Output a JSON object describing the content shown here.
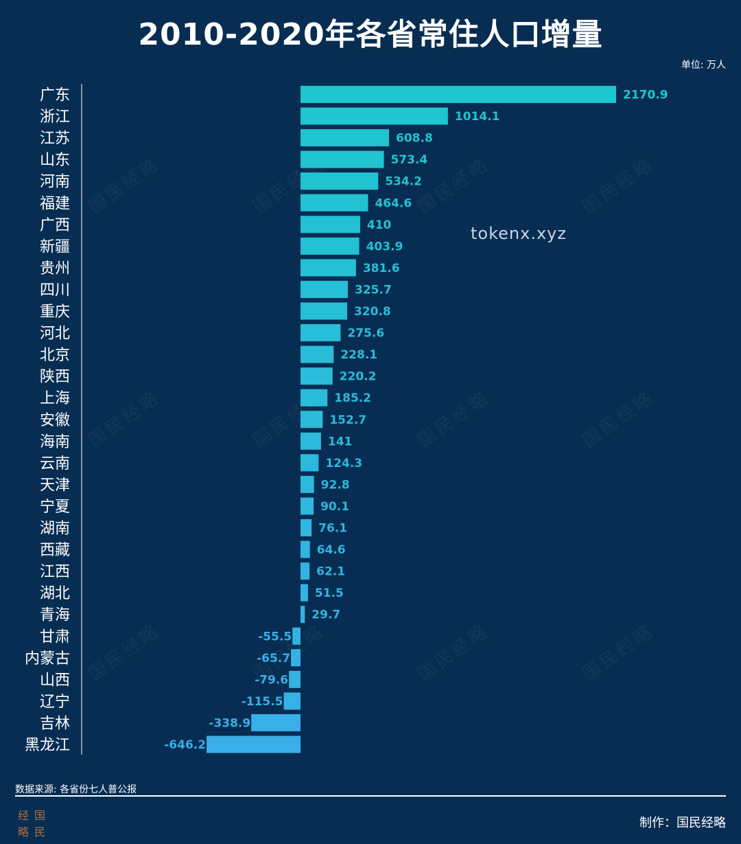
{
  "title": "2010-2020年各省常住人口增量",
  "unit_label": "单位: 万人",
  "source": "数据来源: 各省份七人普公报",
  "watermark_url": "tokenx.xyz",
  "watermark_text": "国民经略",
  "logo": {
    "chars": [
      "经",
      "国",
      "略",
      "民"
    ]
  },
  "maker": "制作：国民经略",
  "colors": {
    "background": "#072d52",
    "bar_high": "#1ec6ce",
    "bar_low": "#39aee8",
    "text": "#ffffff",
    "axis": "#ffffff"
  },
  "chart_data": {
    "type": "bar",
    "orientation": "horizontal",
    "categories": [
      "广东",
      "浙江",
      "江苏",
      "山东",
      "河南",
      "福建",
      "广西",
      "新疆",
      "贵州",
      "四川",
      "重庆",
      "河北",
      "北京",
      "陕西",
      "上海",
      "安徽",
      "海南",
      "云南",
      "天津",
      "宁夏",
      "湖南",
      "西藏",
      "江西",
      "湖北",
      "青海",
      "甘肃",
      "内蒙古",
      "山西",
      "辽宁",
      "吉林",
      "黑龙江"
    ],
    "values": [
      2170.9,
      1014.1,
      608.8,
      573.4,
      534.2,
      464.6,
      410,
      403.9,
      381.6,
      325.7,
      320.8,
      275.6,
      228.1,
      220.2,
      185.2,
      152.7,
      141,
      124.3,
      92.8,
      90.1,
      76.1,
      64.6,
      62.1,
      51.5,
      29.7,
      -55.5,
      -65.7,
      -79.6,
      -115.5,
      -338.9,
      -646.2
    ],
    "value_labels": [
      "2170.9",
      "1014.1",
      "608.8",
      "573.4",
      "534.2",
      "464.6",
      "410",
      "403.9",
      "381.6",
      "325.7",
      "320.8",
      "275.6",
      "228.1",
      "220.2",
      "185.2",
      "152.7",
      "141",
      "124.3",
      "92.8",
      "90.1",
      "76.1",
      "64.6",
      "62.1",
      "51.5",
      "29.7",
      "-55.5",
      "-65.7",
      "-79.6",
      "-115.5",
      "-338.9",
      "-646.2"
    ],
    "xlim": [
      -646.2,
      2170.9
    ],
    "grid": false
  }
}
